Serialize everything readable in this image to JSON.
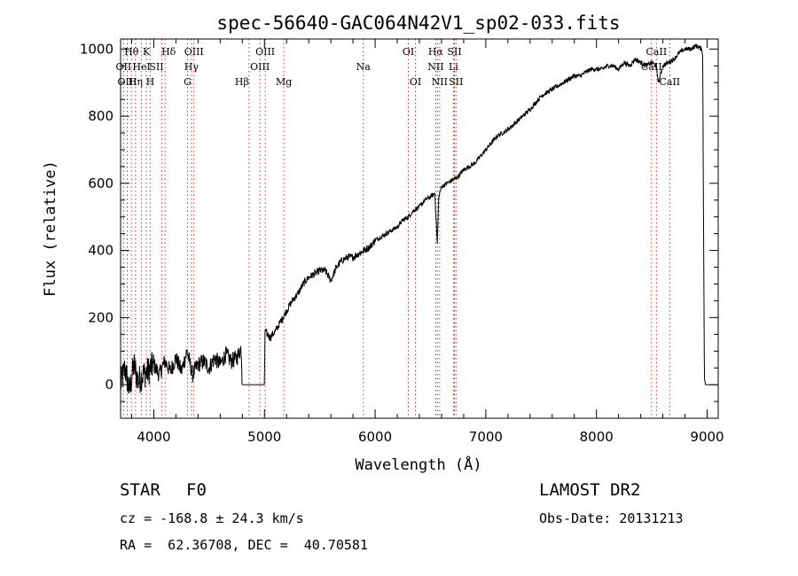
{
  "chart_data": {
    "type": "line",
    "title": "spec-56640-GAC064N42V1_sp02-033.fits",
    "xlabel": "Wavelength (Å)",
    "ylabel": "Flux (relative)",
    "xlim": [
      3700,
      9100
    ],
    "ylim": [
      -100,
      1030
    ],
    "xticks": [
      4000,
      5000,
      6000,
      7000,
      8000,
      9000
    ],
    "yticks": [
      0,
      200,
      400,
      600,
      800,
      1000
    ],
    "x_minor_step": 200,
    "y_minor_step": 50,
    "series": [
      {
        "name": "spectrum",
        "x": [
          3700,
          3740,
          3780,
          3820,
          3860,
          3900,
          3950,
          4000,
          4050,
          4100,
          4150,
          4200,
          4250,
          4300,
          4350,
          4400,
          4450,
          4500,
          4550,
          4600,
          4650,
          4700,
          4750,
          4790,
          4800,
          5000,
          5005,
          5050,
          5100,
          5150,
          5200,
          5250,
          5300,
          5350,
          5400,
          5450,
          5500,
          5550,
          5600,
          5650,
          5700,
          5750,
          5800,
          5850,
          5900,
          5950,
          6000,
          6050,
          6100,
          6150,
          6200,
          6250,
          6300,
          6350,
          6400,
          6450,
          6500,
          6540,
          6562,
          6575,
          6600,
          6650,
          6700,
          6750,
          6800,
          6850,
          6900,
          6950,
          7000,
          7100,
          7200,
          7300,
          7400,
          7500,
          7550,
          7600,
          7650,
          7700,
          7750,
          7800,
          7850,
          7900,
          7950,
          8000,
          8050,
          8100,
          8150,
          8200,
          8250,
          8300,
          8350,
          8400,
          8450,
          8500,
          8540,
          8560,
          8600,
          8650,
          8700,
          8750,
          8800,
          8850,
          8900,
          8950,
          8960,
          8975,
          8985,
          9100
        ],
        "y": [
          0,
          50,
          -20,
          60,
          10,
          30,
          40,
          60,
          30,
          70,
          40,
          80,
          40,
          100,
          30,
          60,
          70,
          50,
          80,
          60,
          90,
          70,
          80,
          110,
          0,
          0,
          160,
          140,
          160,
          190,
          220,
          250,
          270,
          300,
          320,
          330,
          340,
          340,
          310,
          350,
          370,
          380,
          380,
          390,
          400,
          410,
          430,
          440,
          450,
          460,
          470,
          490,
          500,
          520,
          530,
          550,
          560,
          570,
          420,
          560,
          590,
          600,
          610,
          620,
          640,
          650,
          660,
          680,
          700,
          740,
          760,
          790,
          820,
          860,
          870,
          880,
          890,
          900,
          910,
          920,
          920,
          930,
          940,
          940,
          940,
          950,
          950,
          940,
          960,
          950,
          970,
          960,
          950,
          960,
          950,
          900,
          950,
          960,
          970,
          990,
          1000,
          1000,
          1010,
          1000,
          980,
          20,
          0,
          0
        ]
      }
    ],
    "lines": [
      {
        "name": "Hθ",
        "wave": 3798,
        "color": "#000000",
        "tier": 1,
        "offset": 0
      },
      {
        "name": "K",
        "wave": 3933,
        "color": "#000000",
        "tier": 1,
        "offset": 0
      },
      {
        "name": "Hδ",
        "wave": 4102,
        "color": "#000000",
        "tier": 1,
        "offset": 4
      },
      {
        "name": "OIII",
        "wave": 4363,
        "color": "#000000",
        "tier": 1,
        "offset": 0
      },
      {
        "name": "OIII",
        "wave": 5007,
        "color": "#000000",
        "tier": 1,
        "offset": 0
      },
      {
        "name": "OI",
        "wave": 6300,
        "color": "#000000",
        "tier": 1,
        "offset": 0
      },
      {
        "name": "Hα",
        "wave": 6563,
        "color": "#000000",
        "tier": 1,
        "offset": -2
      },
      {
        "name": "SII",
        "wave": 6717,
        "color": "#000000",
        "tier": 1,
        "offset": 0
      },
      {
        "name": "CaII",
        "wave": 8542,
        "color": "#000000",
        "tier": 1,
        "offset": 0
      },
      {
        "name": "OII",
        "wave": 3727,
        "color": "#000000",
        "tier": 2,
        "offset": 0
      },
      {
        "name": "HeI",
        "wave": 3889,
        "color": "#000000",
        "tier": 2,
        "offset": 0
      },
      {
        "name": "SII",
        "wave": 4072,
        "color": "#000000",
        "tier": 2,
        "offset": -6
      },
      {
        "name": "Hγ",
        "wave": 4340,
        "color": "#000000",
        "tier": 2,
        "offset": 0
      },
      {
        "name": "OIII",
        "wave": 4959,
        "color": "#000000",
        "tier": 2,
        "offset": 0
      },
      {
        "name": "Na",
        "wave": 5893,
        "color": "#000000",
        "tier": 2,
        "offset": 0
      },
      {
        "name": "NII",
        "wave": 6548,
        "color": "#000000",
        "tier": 2,
        "offset": 0
      },
      {
        "name": "Li",
        "wave": 6708,
        "color": "#000000",
        "tier": 2,
        "offset": 0
      },
      {
        "name": "CaII",
        "wave": 8498,
        "color": "#000000",
        "tier": 2,
        "offset": 0
      },
      {
        "name": "OIII",
        "wave": 3760,
        "color": "#000000",
        "tier": 3,
        "offset": 0
      },
      {
        "name": "Hη",
        "wave": 3835,
        "color": "#000000",
        "tier": 3,
        "offset": 0
      },
      {
        "name": "H",
        "wave": 3968,
        "color": "#000000",
        "tier": 3,
        "offset": 0
      },
      {
        "name": "G",
        "wave": 4305,
        "color": "#000000",
        "tier": 3,
        "offset": 0
      },
      {
        "name": "Hβ",
        "wave": 4861,
        "color": "#000000",
        "tier": 3,
        "offset": -8
      },
      {
        "name": "Mg",
        "wave": 5175,
        "color": "#000000",
        "tier": 3,
        "offset": 0
      },
      {
        "name": "OI",
        "wave": 6364,
        "color": "#000000",
        "tier": 3,
        "offset": 0
      },
      {
        "name": "NII",
        "wave": 6583,
        "color": "#000000",
        "tier": 3,
        "offset": 0
      },
      {
        "name": "SII",
        "wave": 6731,
        "color": "#000000",
        "tier": 3,
        "offset": 0
      },
      {
        "name": "CaII",
        "wave": 8662,
        "color": "#000000",
        "tier": 3,
        "offset": 0
      }
    ]
  },
  "info": {
    "class": "STAR",
    "subclass": "F0",
    "survey": "LAMOST DR2",
    "cz": "cz = -168.8 ± 24.3 km/s",
    "obsdate": "Obs-Date: 20131213",
    "radec": "RA =  62.36708, DEC =  40.70581"
  },
  "colors": {
    "line_marker": "#cc3333",
    "axis": "#000000",
    "spectrum": "#000000"
  }
}
